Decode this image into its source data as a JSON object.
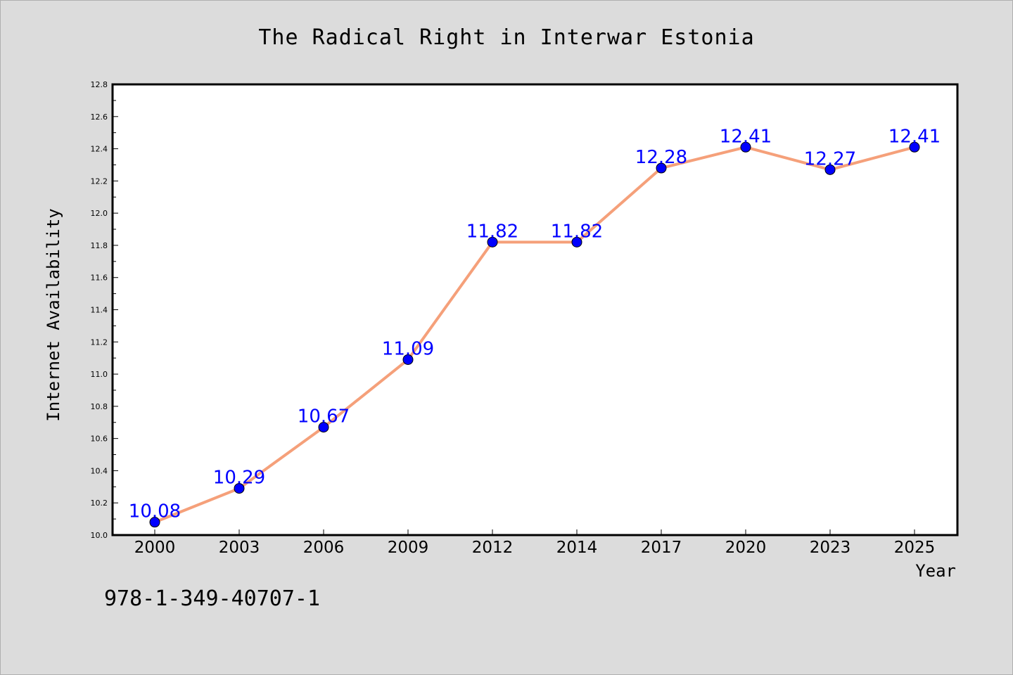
{
  "chart_data": {
    "type": "line",
    "title": "The Radical Right in Interwar Estonia",
    "xlabel": "Year",
    "ylabel": "Internet Availability",
    "categories": [
      "2000",
      "2003",
      "2006",
      "2009",
      "2012",
      "2014",
      "2017",
      "2020",
      "2023",
      "2025"
    ],
    "series": [
      {
        "values": [
          10.08,
          10.29,
          10.67,
          11.09,
          11.82,
          11.82,
          12.28,
          12.41,
          12.27,
          12.41
        ],
        "labels": [
          "10.08",
          "10.29",
          "10.67",
          "11.09",
          "11.82",
          "11.82",
          "12.28",
          "12.41",
          "12.27",
          "12.41"
        ],
        "line_color": "#f5a07a",
        "marker_color": "#0000ff"
      }
    ],
    "ylim": [
      10.0,
      12.8
    ],
    "yticks": [
      "10.0",
      "10.2",
      "10.4",
      "10.6",
      "10.8",
      "11.0",
      "11.2",
      "11.4",
      "11.6",
      "11.8",
      "12.0",
      "12.2",
      "12.4",
      "12.6",
      "12.8"
    ],
    "grid": false,
    "legend": "none"
  },
  "footnote": "978-1-349-40707-1"
}
